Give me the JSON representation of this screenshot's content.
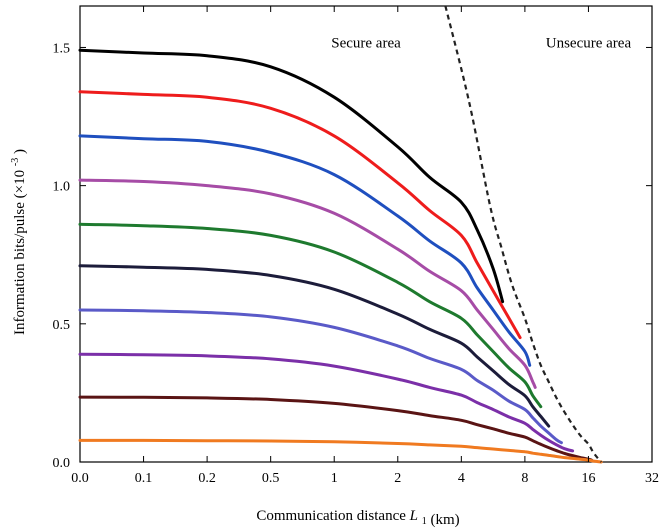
{
  "chart_data": {
    "type": "line",
    "title": "",
    "xlabel": "Communication distance",
    "xlabel_symbol": "L",
    "xlabel_subscript": "1",
    "xlabel_unit": "(km)",
    "ylabel": "Information bits/pulse (×10",
    "ylabel_exponent": "-3",
    "ylabel_suffix": ")",
    "x_tick_labels": [
      "0.0",
      "0.1",
      "0.2",
      "0.5",
      "1",
      "2",
      "4",
      "8",
      "16",
      "32"
    ],
    "x_tick_values": [
      0,
      0.1,
      0.2,
      0.5,
      1,
      2,
      4,
      8,
      16,
      32
    ],
    "x_scale": "nonlinear (labels as shown)",
    "xlim": [
      0,
      32
    ],
    "y_tick_labels": [
      "0.0",
      "0.5",
      "1.0",
      "1.5"
    ],
    "y_tick_values": [
      0,
      0.5,
      1.0,
      1.5
    ],
    "ylim": [
      0,
      1.65
    ],
    "grid": false,
    "annotations": [
      {
        "text": "Secure area",
        "x": 1.5,
        "y": 1.5
      },
      {
        "text": "Unsecure area",
        "x": 16,
        "y": 1.5
      }
    ],
    "boundary": {
      "style": "dashed",
      "color": "#222222",
      "x": [
        3.5,
        4.5,
        5.8,
        6.5,
        7.2,
        8,
        9,
        10,
        11,
        12,
        13,
        14,
        15,
        16,
        17,
        18,
        19.2
      ],
      "y": [
        1.65,
        1.3,
        0.93,
        0.78,
        0.64,
        0.52,
        0.43,
        0.35,
        0.29,
        0.23,
        0.18,
        0.135,
        0.095,
        0.065,
        0.04,
        0.02,
        0.0
      ]
    },
    "series": [
      {
        "color": "#000000",
        "end_x": 6.6,
        "x": [
          0,
          0.1,
          0.2,
          0.5,
          1,
          2,
          3,
          4,
          5,
          6,
          6.6
        ],
        "y": [
          1.49,
          1.48,
          1.47,
          1.43,
          1.32,
          1.14,
          1.03,
          0.94,
          0.84,
          0.7,
          0.58
        ]
      },
      {
        "color": "#ee1c1c",
        "end_x": 7.7,
        "x": [
          0,
          0.1,
          0.2,
          0.5,
          1,
          2,
          3,
          4,
          5,
          6,
          7,
          7.7
        ],
        "y": [
          1.34,
          1.33,
          1.32,
          1.28,
          1.18,
          1.01,
          0.91,
          0.82,
          0.72,
          0.62,
          0.52,
          0.45
        ]
      },
      {
        "color": "#1f4fbf",
        "end_x": 8.6,
        "x": [
          0,
          0.1,
          0.2,
          0.5,
          1,
          2,
          3,
          4,
          5,
          6,
          7,
          8,
          8.6
        ],
        "y": [
          1.18,
          1.17,
          1.16,
          1.12,
          1.04,
          0.89,
          0.8,
          0.72,
          0.63,
          0.55,
          0.47,
          0.4,
          0.35
        ]
      },
      {
        "color": "#a64ca6",
        "end_x": 9.3,
        "x": [
          0,
          0.1,
          0.2,
          0.5,
          1,
          2,
          3,
          4,
          5,
          6,
          7,
          8,
          9,
          9.3
        ],
        "y": [
          1.02,
          1.015,
          1.0,
          0.97,
          0.9,
          0.77,
          0.69,
          0.62,
          0.55,
          0.48,
          0.41,
          0.35,
          0.29,
          0.27
        ]
      },
      {
        "color": "#1e7a2e",
        "end_x": 10,
        "x": [
          0,
          0.1,
          0.2,
          0.5,
          1,
          2,
          3,
          4,
          5,
          6,
          7,
          8,
          9,
          10
        ],
        "y": [
          0.86,
          0.855,
          0.845,
          0.82,
          0.76,
          0.65,
          0.58,
          0.52,
          0.46,
          0.4,
          0.34,
          0.29,
          0.24,
          0.2
        ]
      },
      {
        "color": "#1c1c3a",
        "end_x": 11,
        "x": [
          0,
          0.1,
          0.2,
          0.5,
          1,
          2,
          3,
          4,
          5,
          6,
          7,
          8,
          9,
          10,
          11
        ],
        "y": [
          0.71,
          0.705,
          0.697,
          0.675,
          0.625,
          0.535,
          0.48,
          0.43,
          0.38,
          0.33,
          0.28,
          0.24,
          0.2,
          0.165,
          0.13
        ]
      },
      {
        "color": "#5a5ac8",
        "end_x": 12.6,
        "x": [
          0,
          0.1,
          0.2,
          0.5,
          1,
          2,
          3,
          4,
          5,
          6,
          7,
          8,
          9,
          10,
          11,
          12,
          12.6
        ],
        "y": [
          0.55,
          0.547,
          0.541,
          0.525,
          0.487,
          0.42,
          0.375,
          0.335,
          0.295,
          0.26,
          0.22,
          0.19,
          0.16,
          0.13,
          0.105,
          0.08,
          0.07
        ]
      },
      {
        "color": "#7b2fa8",
        "end_x": 14,
        "x": [
          0,
          0.1,
          0.2,
          0.5,
          1,
          2,
          3,
          4,
          5,
          6,
          7,
          8,
          9,
          10,
          11,
          12,
          13,
          14
        ],
        "y": [
          0.39,
          0.388,
          0.384,
          0.373,
          0.347,
          0.3,
          0.27,
          0.242,
          0.215,
          0.19,
          0.163,
          0.14,
          0.118,
          0.097,
          0.078,
          0.062,
          0.048,
          0.04
        ]
      },
      {
        "color": "#5a1414",
        "end_x": 16.8,
        "x": [
          0,
          0.1,
          0.2,
          0.5,
          1,
          2,
          3,
          4,
          5,
          6,
          7,
          8,
          9,
          10,
          11,
          12,
          13,
          14,
          15,
          16,
          16.8
        ],
        "y": [
          0.235,
          0.234,
          0.232,
          0.226,
          0.212,
          0.186,
          0.168,
          0.151,
          0.135,
          0.12,
          0.104,
          0.09,
          0.077,
          0.064,
          0.052,
          0.041,
          0.031,
          0.023,
          0.016,
          0.01,
          0.007
        ]
      },
      {
        "color": "#f07a20",
        "end_x": 19.2,
        "x": [
          0,
          0.1,
          0.2,
          0.5,
          1,
          2,
          3,
          4,
          5,
          6,
          7,
          8,
          9,
          10,
          11,
          12,
          13,
          14,
          15,
          16,
          17,
          18,
          19.2
        ],
        "y": [
          0.078,
          0.078,
          0.077,
          0.076,
          0.073,
          0.067,
          0.062,
          0.057,
          0.052,
          0.047,
          0.042,
          0.037,
          0.032,
          0.028,
          0.024,
          0.02,
          0.016,
          0.013,
          0.01,
          0.007,
          0.004,
          0.002,
          0.0
        ]
      }
    ]
  }
}
